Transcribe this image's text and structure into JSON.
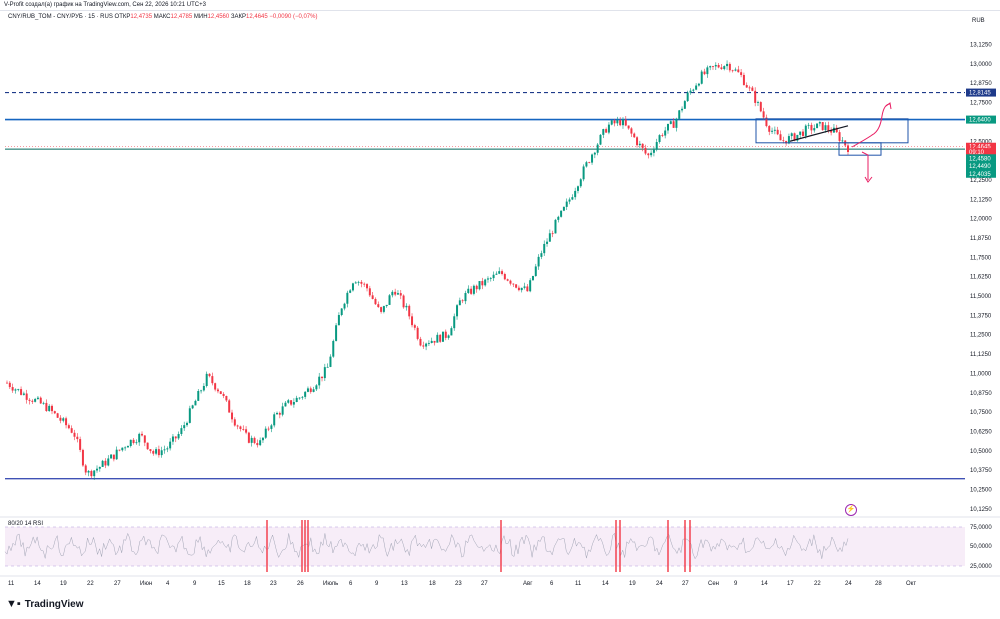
{
  "header": {
    "caption": "V-Profit создал(а) график на TradingView.com, Сен 22, 2026 10:21 UTC+3"
  },
  "symbol": {
    "title": "CNY/RUB_TOM - CNY/РУБ · 15 · RUS",
    "ohlc": {
      "open_label": "ОТКР",
      "open": "12,4735",
      "high_label": "МАКС",
      "high": "12,4785",
      "low_label": "МИН",
      "low": "12,4560",
      "close_label": "ЗАКР",
      "close": "12,4645",
      "change": "−0,0090 (−0,07%)"
    }
  },
  "currency": "RUB",
  "colors": {
    "up": "#089981",
    "down": "#f23645",
    "level": "#2962ff",
    "level_dark": "#1e3a8a",
    "green_tag": "#089981",
    "red_tag": "#f23645",
    "box": "#1e53a8",
    "arrow": "#e91e63",
    "rsi_band": "#9c27b0"
  },
  "price_axis": [
    "13,1250",
    "13,0000",
    "12,8750",
    "12,7500",
    "12,5000",
    "12,2500",
    "12,1250",
    "12,0000",
    "11,8750",
    "11,7500",
    "11,6250",
    "11,5000",
    "11,3750",
    "11,2500",
    "11,1250",
    "11,0000",
    "10,8750",
    "10,7500",
    "10,6250",
    "10,5000",
    "10,3750",
    "10,2500",
    "10,1250"
  ],
  "price_tags": [
    {
      "label": "12,8145",
      "color": "#1e3a8a"
    },
    {
      "label": "12,6400",
      "color": "#089981"
    },
    {
      "label": "12,4645",
      "color": "#f23645"
    },
    {
      "label": "09:10",
      "color": "#f23645"
    },
    {
      "label": "12,4580",
      "color": "#089981"
    },
    {
      "label": "12,4490",
      "color": "#089981"
    },
    {
      "label": "12,4035",
      "color": "#089981"
    }
  ],
  "time_axis": [
    "11",
    "14",
    "19",
    "22",
    "27",
    "Июн",
    "4",
    "9",
    "15",
    "18",
    "23",
    "26",
    "Июль",
    "6",
    "9",
    "13",
    "18",
    "23",
    "27",
    "Авг",
    "6",
    "11",
    "14",
    "19",
    "24",
    "27",
    "Сен",
    "9",
    "14",
    "17",
    "22",
    "24",
    "28",
    "Окт"
  ],
  "rsi": {
    "label": "80/20 14 RSI",
    "axis": [
      "75,0000",
      "50,0000",
      "25,0000"
    ]
  },
  "chart_data": {
    "type": "candlestick",
    "title": "CNY/RUB_TOM - CNY/РУБ · 15 · RUS",
    "y_unit": "RUB",
    "ylim": [
      10.15,
      13.18
    ],
    "x_labels": [
      "11",
      "14",
      "19",
      "22",
      "27",
      "Июн",
      "4",
      "9",
      "15",
      "18",
      "23",
      "26",
      "Июль",
      "6",
      "9",
      "13",
      "18",
      "23",
      "27",
      "Авг",
      "6",
      "11",
      "14",
      "19",
      "24",
      "27",
      "Сен",
      "9",
      "14",
      "17",
      "22",
      "24",
      "28",
      "Окт"
    ],
    "price_path": [
      10.94,
      10.88,
      10.83,
      10.78,
      10.7,
      10.62,
      10.35,
      10.4,
      10.47,
      10.55,
      10.6,
      10.48,
      10.52,
      10.62,
      10.8,
      10.98,
      10.88,
      10.7,
      10.58,
      10.55,
      10.72,
      10.8,
      10.85,
      10.93,
      11.03,
      11.42,
      11.62,
      11.55,
      11.38,
      11.55,
      11.4,
      11.2,
      11.22,
      11.25,
      11.48,
      11.55,
      11.6,
      11.65,
      11.58,
      11.53,
      11.78,
      11.95,
      12.1,
      12.28,
      12.45,
      12.6,
      12.63,
      12.52,
      12.4,
      12.55,
      12.62,
      12.8,
      12.92,
      12.98,
      13.0,
      12.92,
      12.78,
      12.6,
      12.5,
      12.53,
      12.58,
      12.6,
      12.56,
      12.46
    ],
    "levels": [
      {
        "value": 12.8145,
        "style": "dashed"
      },
      {
        "value": 12.64,
        "style": "solid"
      },
      {
        "value": 12.449,
        "style": "solid"
      },
      {
        "value": 10.32,
        "style": "solid"
      }
    ],
    "last_price": 12.4645,
    "rsi": {
      "period": 14,
      "upper": 80,
      "lower": 20
    }
  }
}
